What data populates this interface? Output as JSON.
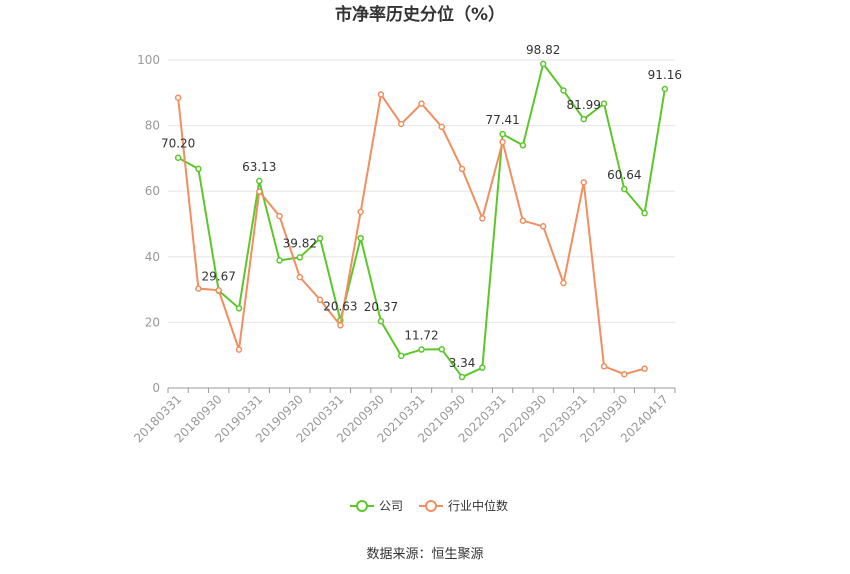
{
  "chart_data": {
    "type": "line",
    "title": "市净率历史分位（%）",
    "source": "数据来源：恒生聚源",
    "ylim": [
      0,
      100
    ],
    "yticks": [
      0,
      20,
      40,
      60,
      80,
      100
    ],
    "grid": true,
    "legend_position": "bottom",
    "x": [
      "20180331",
      "20180630",
      "20180930",
      "20181231",
      "20190331",
      "20190630",
      "20190930",
      "20191231",
      "20200331",
      "20200630",
      "20200930",
      "20201231",
      "20210331",
      "20210630",
      "20210930",
      "20211231",
      "20220331",
      "20220630",
      "20220930",
      "20221231",
      "20230331",
      "20230630",
      "20230930",
      "20231231",
      "20240417"
    ],
    "x_tick_labels": [
      "20180331",
      "20180930",
      "20190331",
      "20190930",
      "20200331",
      "20200930",
      "20210331",
      "20210930",
      "20220331",
      "20220930",
      "20230331",
      "20230930",
      "20240417"
    ],
    "series": [
      {
        "name": "公司",
        "color": "#5cc72b",
        "values": [
          70.2,
          66.8,
          29.67,
          24.3,
          63.13,
          38.9,
          39.82,
          45.6,
          20.63,
          45.7,
          20.37,
          9.8,
          11.72,
          11.8,
          3.34,
          6.2,
          77.41,
          74.0,
          98.82,
          90.7,
          81.99,
          86.7,
          60.64,
          53.3,
          91.16
        ],
        "labels": {
          "0": "70.20",
          "2": "29.67",
          "4": "63.13",
          "6": "39.82",
          "8": "20.63",
          "10": "20.37",
          "12": "11.72",
          "14": "3.34",
          "16": "77.41",
          "18": "98.82",
          "20": "81.99",
          "22": "60.64",
          "24": "91.16"
        }
      },
      {
        "name": "行业中位数",
        "color": "#f28e5f",
        "values": [
          88.5,
          30.3,
          29.8,
          11.7,
          59.9,
          52.4,
          33.8,
          26.9,
          19.1,
          53.7,
          89.5,
          80.5,
          86.7,
          79.6,
          66.8,
          51.7,
          75.0,
          51.0,
          49.3,
          32.0,
          62.7,
          6.6,
          4.2,
          5.9,
          null
        ]
      }
    ]
  }
}
